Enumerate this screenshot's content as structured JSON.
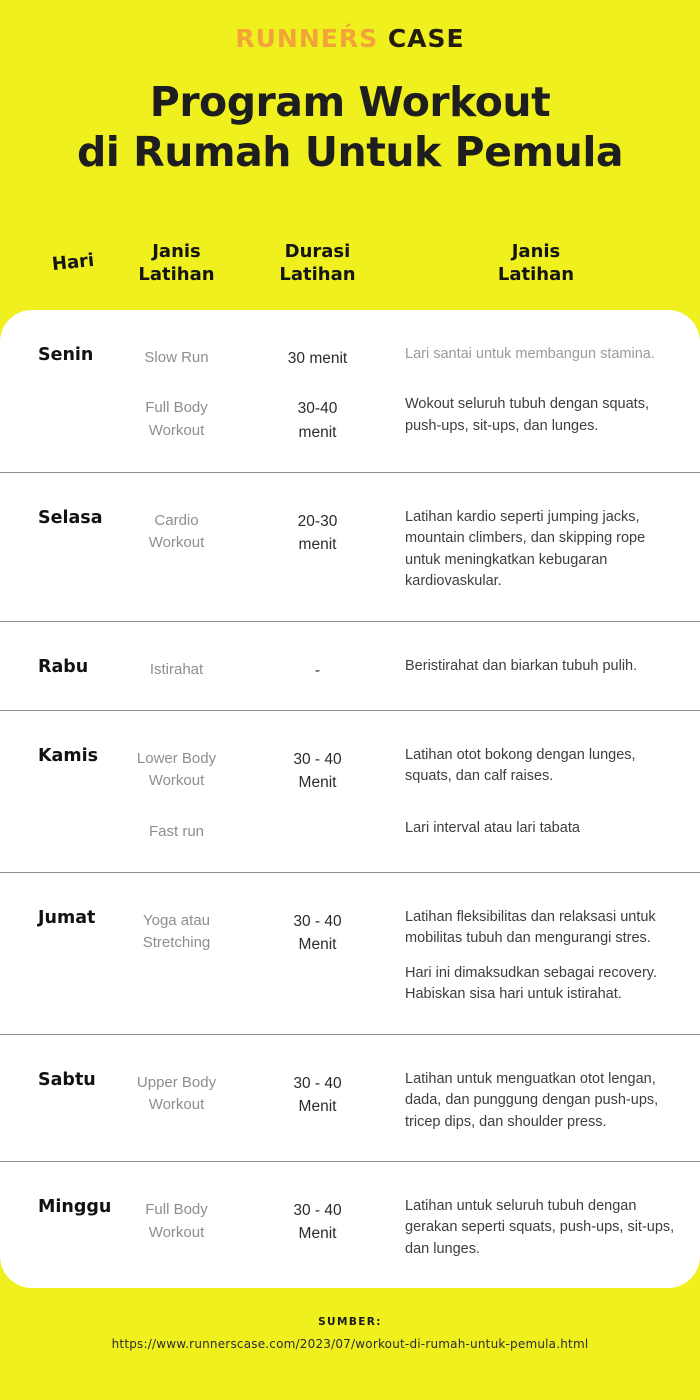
{
  "brand": {
    "runners": "RUNNEŔS",
    "case": "CASE",
    "runners_color": "#F2A339",
    "case_color": "#241D0C"
  },
  "title": {
    "line1": "Program Workout",
    "line2": "di Rumah Untuk Pemula"
  },
  "columns": {
    "hari": "Hari",
    "janis_latihan": "Janis\nLatihan",
    "durasi_latihan": "Durasi\nLatihan",
    "janis_latihan_2": "Janis\nLatihan"
  },
  "table": {
    "days": [
      {
        "day": "Senin",
        "activities": [
          {
            "name": "Slow Run",
            "duration": "30 menit",
            "desc": [
              "Lari santai untuk membangun stamina."
            ],
            "muted": true
          },
          {
            "name": "Full Body\nWorkout",
            "duration": "30-40\nmenit",
            "desc": [
              "Wokout seluruh tubuh dengan  squats, push-ups, sit-ups, dan lunges."
            ],
            "muted": false
          }
        ]
      },
      {
        "day": "Selasa",
        "activities": [
          {
            "name": "Cardio\nWorkout",
            "duration": "20-30\nmenit",
            "desc": [
              "Latihan kardio seperti jumping jacks, mountain climbers, dan skipping rope untuk meningkatkan kebugaran kardiovaskular."
            ],
            "muted": false
          }
        ]
      },
      {
        "day": "Rabu",
        "activities": [
          {
            "name": "Istirahat",
            "duration": "-",
            "desc": [
              "Beristirahat dan biarkan tubuh pulih."
            ],
            "muted": false
          }
        ]
      },
      {
        "day": "Kamis",
        "activities": [
          {
            "name": "Lower Body\nWorkout",
            "duration": "30 - 40\nMenit",
            "desc": [
              "Latihan otot bokong dengan lunges, squats, dan calf raises."
            ],
            "muted": false
          },
          {
            "name": "Fast run",
            "duration": "",
            "desc": [
              "Lari interval atau lari tabata"
            ],
            "muted": false
          }
        ]
      },
      {
        "day": "Jumat",
        "activities": [
          {
            "name": "Yoga atau\nStretching",
            "duration": "30 - 40\nMenit",
            "desc": [
              "Latihan fleksibilitas dan relaksasi untuk mobilitas tubuh dan mengurangi stres.",
              "Hari ini dimaksudkan sebagai recovery. Habiskan sisa hari untuk istirahat."
            ],
            "muted": false
          }
        ]
      },
      {
        "day": "Sabtu",
        "activities": [
          {
            "name": "Upper Body\nWorkout",
            "duration": "30 - 40\nMenit",
            "desc": [
              "Latihan untuk menguatkan otot lengan, dada, dan punggung dengan push-ups, tricep dips, dan shoulder press."
            ],
            "muted": false
          }
        ]
      },
      {
        "day": "Minggu",
        "activities": [
          {
            "name": "Full Body\nWorkout",
            "duration": "30 - 40\nMenit",
            "desc": [
              "Latihan untuk seluruh tubuh dengan gerakan seperti squats, push-ups, sit-ups, dan lunges."
            ],
            "muted": false
          }
        ]
      }
    ]
  },
  "footer": {
    "label": "SUMBER:",
    "url": "https://www.runnerscase.com/2023/07/workout-di-rumah-untuk-pemula.html"
  },
  "colors": {
    "background": "#F0F01E",
    "card": "#FFFFFF",
    "brand_orange": "#F2A339",
    "title_ink": "#1E1E1E"
  }
}
